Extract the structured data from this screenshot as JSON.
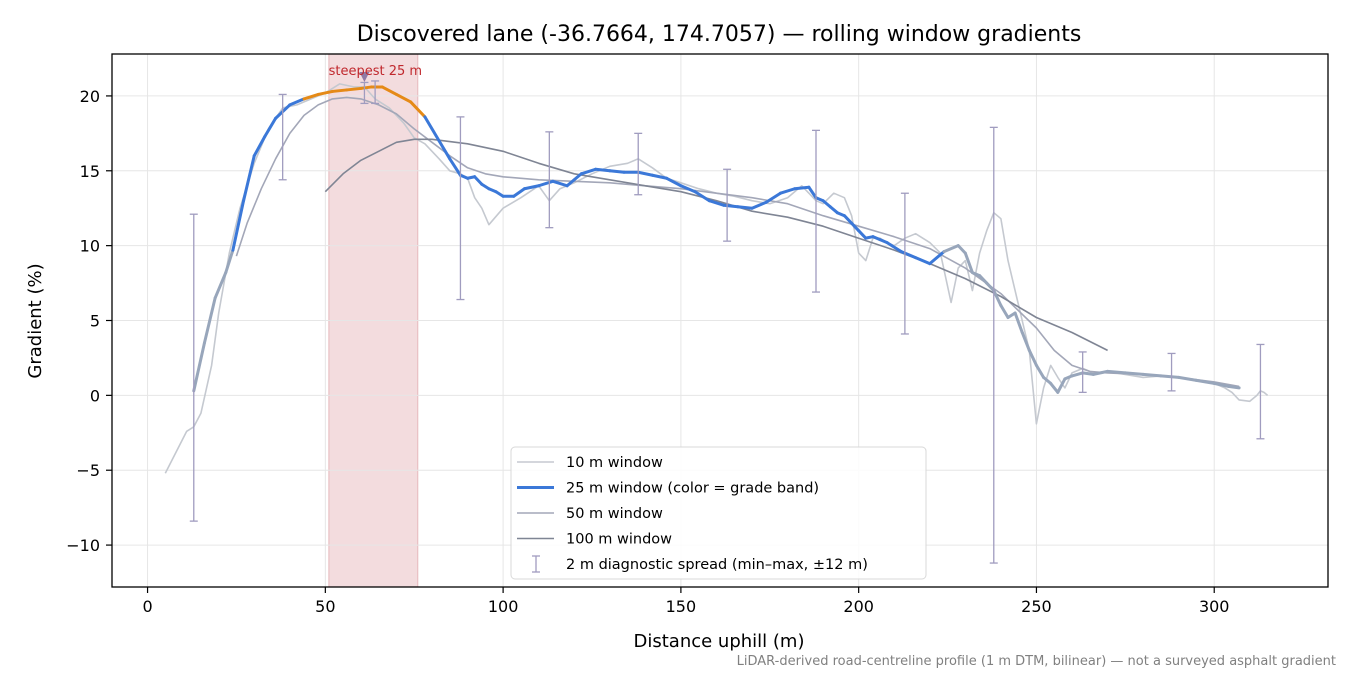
{
  "chart_data": {
    "type": "line",
    "title": "Discovered lane (-36.7664, 174.7057) — rolling window gradients",
    "xlabel": "Distance uphill (m)",
    "ylabel": "Gradient (%)",
    "xlim": [
      -10,
      332
    ],
    "ylim": [
      -12.8,
      22.8
    ],
    "xticks": [
      0,
      50,
      100,
      150,
      200,
      250,
      300
    ],
    "yticks": [
      -10,
      -5,
      0,
      5,
      10,
      15,
      20
    ],
    "x_tick_labels": [
      "0",
      "50",
      "100",
      "150",
      "200",
      "250",
      "300"
    ],
    "y_tick_labels": [
      "−10",
      "−5",
      "0",
      "5",
      "10",
      "15",
      "20"
    ],
    "grid": true,
    "legend_position": "lower-center",
    "caption": "LiDAR-derived road-centreline profile (1 m DTM, bilinear) — not a surveyed asphalt gradient",
    "highlight": {
      "label": "steepest 25 m",
      "x_range": [
        51,
        76
      ],
      "marker": [
        61,
        21.2
      ],
      "color": "#c0282d"
    },
    "colors": {
      "w10": "#c5c9d0",
      "w25": "#3b78d8",
      "w25_steep": "#e58a17",
      "w25_gentle": "#98a6bb",
      "w50": "#a3a7b8",
      "w100": "#7f8594",
      "errorbar": "#a09cbf",
      "band": "#f3dcde"
    },
    "legend": [
      {
        "label": "10 m window",
        "style": "w10"
      },
      {
        "label": "25 m window (color = grade band)",
        "style": "w25"
      },
      {
        "label": "50 m window",
        "style": "w50"
      },
      {
        "label": "100 m window",
        "style": "w100"
      },
      {
        "label": "2 m diagnostic spread (min–max, ±12 m)",
        "style": "errorbar"
      }
    ],
    "series": [
      {
        "name": "10 m window",
        "x": [
          5,
          8,
          11,
          13,
          15,
          18,
          20,
          23,
          26,
          30,
          34,
          38,
          42,
          46,
          50,
          54,
          58,
          61,
          64,
          68,
          72,
          75,
          78,
          82,
          85,
          88,
          90,
          92,
          94,
          96,
          100,
          105,
          110,
          113,
          116,
          120,
          125,
          130,
          135,
          138,
          142,
          146,
          150,
          155,
          160,
          165,
          170,
          175,
          180,
          184,
          186,
          188,
          190,
          193,
          196,
          198,
          200,
          202,
          204,
          206,
          208,
          210,
          213,
          216,
          220,
          223,
          226,
          228,
          230,
          232,
          234,
          236,
          238,
          240,
          242,
          244,
          246,
          248,
          250,
          252,
          254,
          256,
          258,
          260,
          263,
          266,
          270,
          275,
          280,
          285,
          290,
          295,
          300,
          303,
          305,
          307,
          310,
          312,
          313,
          314,
          315
        ],
        "y": [
          -5.2,
          -3.8,
          -2.4,
          -2.1,
          -1.2,
          2.0,
          5.5,
          9.5,
          12.5,
          15.5,
          17.8,
          19.2,
          19.4,
          19.8,
          20.2,
          20.8,
          20.6,
          20.6,
          19.8,
          19.2,
          18.2,
          17.2,
          16.8,
          15.8,
          15.0,
          14.8,
          14.5,
          13.2,
          12.5,
          11.4,
          12.5,
          13.2,
          14.0,
          13.0,
          13.8,
          14.2,
          14.8,
          15.3,
          15.5,
          15.8,
          15.2,
          14.5,
          14.2,
          13.8,
          13.5,
          13.3,
          13.0,
          12.8,
          13.2,
          14.0,
          13.5,
          13.0,
          12.8,
          13.5,
          13.2,
          12.0,
          9.5,
          9.0,
          10.5,
          10.5,
          10.2,
          10.0,
          10.5,
          10.8,
          10.2,
          9.5,
          6.2,
          8.5,
          9.0,
          7.0,
          9.5,
          11.0,
          12.2,
          11.8,
          9.0,
          7.0,
          5.0,
          3.0,
          -1.9,
          0.5,
          2.0,
          1.2,
          0.5,
          1.5,
          1.8,
          1.5,
          1.6,
          1.4,
          1.2,
          1.3,
          1.2,
          1.0,
          0.8,
          0.5,
          0.2,
          -0.3,
          -0.4,
          0.0,
          0.3,
          0.2,
          0.0
        ]
      },
      {
        "name": "25 m window (color = grade band)",
        "x": [
          13,
          16,
          19,
          22,
          24,
          27,
          30,
          33,
          36,
          40,
          44,
          48,
          52,
          56,
          60,
          63,
          66,
          70,
          74,
          78,
          82,
          85,
          88,
          90,
          92,
          94,
          96,
          98,
          100,
          103,
          106,
          110,
          114,
          118,
          122,
          126,
          130,
          134,
          138,
          142,
          146,
          150,
          154,
          158,
          162,
          166,
          170,
          174,
          178,
          182,
          186,
          188,
          190,
          192,
          194,
          196,
          198,
          200,
          202,
          204,
          206,
          208,
          212,
          216,
          220,
          224,
          228,
          230,
          232,
          234,
          236,
          238,
          240,
          242,
          244,
          246,
          248,
          250,
          252,
          254,
          256,
          258,
          260,
          263,
          266,
          270,
          275,
          280,
          285,
          290,
          295,
          300,
          304,
          307
        ],
        "y": [
          0.3,
          3.5,
          6.5,
          8.2,
          9.7,
          13.0,
          16.0,
          17.3,
          18.5,
          19.4,
          19.8,
          20.1,
          20.3,
          20.4,
          20.5,
          20.6,
          20.6,
          20.1,
          19.6,
          18.6,
          17.0,
          15.8,
          14.7,
          14.5,
          14.6,
          14.1,
          13.8,
          13.6,
          13.3,
          13.3,
          13.8,
          14.0,
          14.3,
          14.0,
          14.8,
          15.1,
          15.0,
          14.9,
          14.9,
          14.7,
          14.5,
          14.0,
          13.6,
          13.0,
          12.7,
          12.6,
          12.5,
          12.9,
          13.5,
          13.8,
          13.9,
          13.2,
          13.0,
          12.6,
          12.2,
          12.0,
          11.5,
          11.0,
          10.5,
          10.6,
          10.4,
          10.2,
          9.6,
          9.2,
          8.8,
          9.6,
          10.0,
          9.5,
          8.2,
          8.0,
          7.5,
          7.0,
          6.0,
          5.2,
          5.5,
          4.2,
          3.0,
          2.0,
          1.2,
          0.8,
          0.2,
          1.1,
          1.3,
          1.5,
          1.4,
          1.6,
          1.5,
          1.4,
          1.3,
          1.2,
          1.0,
          0.8,
          0.6,
          0.5
        ]
      },
      {
        "name": "50 m window",
        "x": [
          25,
          28,
          32,
          36,
          40,
          44,
          48,
          52,
          56,
          60,
          65,
          70,
          75,
          80,
          85,
          90,
          95,
          100,
          110,
          120,
          130,
          140,
          150,
          160,
          170,
          180,
          190,
          200,
          210,
          220,
          230,
          240,
          250,
          255,
          260,
          265,
          270,
          280,
          290,
          300,
          307
        ],
        "y": [
          9.3,
          11.5,
          13.8,
          15.8,
          17.5,
          18.7,
          19.4,
          19.8,
          19.9,
          19.8,
          19.4,
          18.8,
          17.8,
          16.9,
          16.0,
          15.2,
          14.8,
          14.6,
          14.4,
          14.3,
          14.2,
          14.0,
          13.8,
          13.5,
          13.2,
          12.8,
          12.0,
          11.3,
          10.6,
          9.8,
          8.5,
          6.8,
          4.5,
          3.0,
          2.0,
          1.6,
          1.5,
          1.4,
          1.2,
          0.9,
          0.6
        ]
      },
      {
        "name": "100 m window",
        "x": [
          50,
          55,
          60,
          65,
          70,
          75,
          80,
          90,
          100,
          110,
          120,
          130,
          140,
          150,
          160,
          170,
          180,
          190,
          200,
          210,
          220,
          230,
          240,
          250,
          260,
          270
        ],
        "y": [
          13.6,
          14.8,
          15.7,
          16.3,
          16.9,
          17.1,
          17.1,
          16.8,
          16.3,
          15.5,
          14.8,
          14.4,
          14.0,
          13.6,
          13.0,
          12.3,
          11.9,
          11.3,
          10.5,
          9.7,
          8.8,
          7.8,
          6.6,
          5.2,
          4.2,
          3.0
        ]
      }
    ],
    "errorbars": [
      {
        "x": 13,
        "low": -8.4,
        "high": 12.1
      },
      {
        "x": 38,
        "low": 14.4,
        "high": 20.1
      },
      {
        "x": 61,
        "low": 19.5,
        "high": 20.9
      },
      {
        "x": 64,
        "low": 19.5,
        "high": 21.0
      },
      {
        "x": 88,
        "low": 6.4,
        "high": 18.6
      },
      {
        "x": 113,
        "low": 11.2,
        "high": 17.6
      },
      {
        "x": 138,
        "low": 13.4,
        "high": 17.5
      },
      {
        "x": 163,
        "low": 10.3,
        "high": 15.1
      },
      {
        "x": 188,
        "low": 6.9,
        "high": 17.7
      },
      {
        "x": 213,
        "low": 4.1,
        "high": 13.5
      },
      {
        "x": 238,
        "low": -11.2,
        "high": 17.9
      },
      {
        "x": 263,
        "low": 0.2,
        "high": 2.9
      },
      {
        "x": 288,
        "low": 0.3,
        "high": 2.8
      },
      {
        "x": 313,
        "low": -2.9,
        "high": 3.4
      }
    ]
  }
}
